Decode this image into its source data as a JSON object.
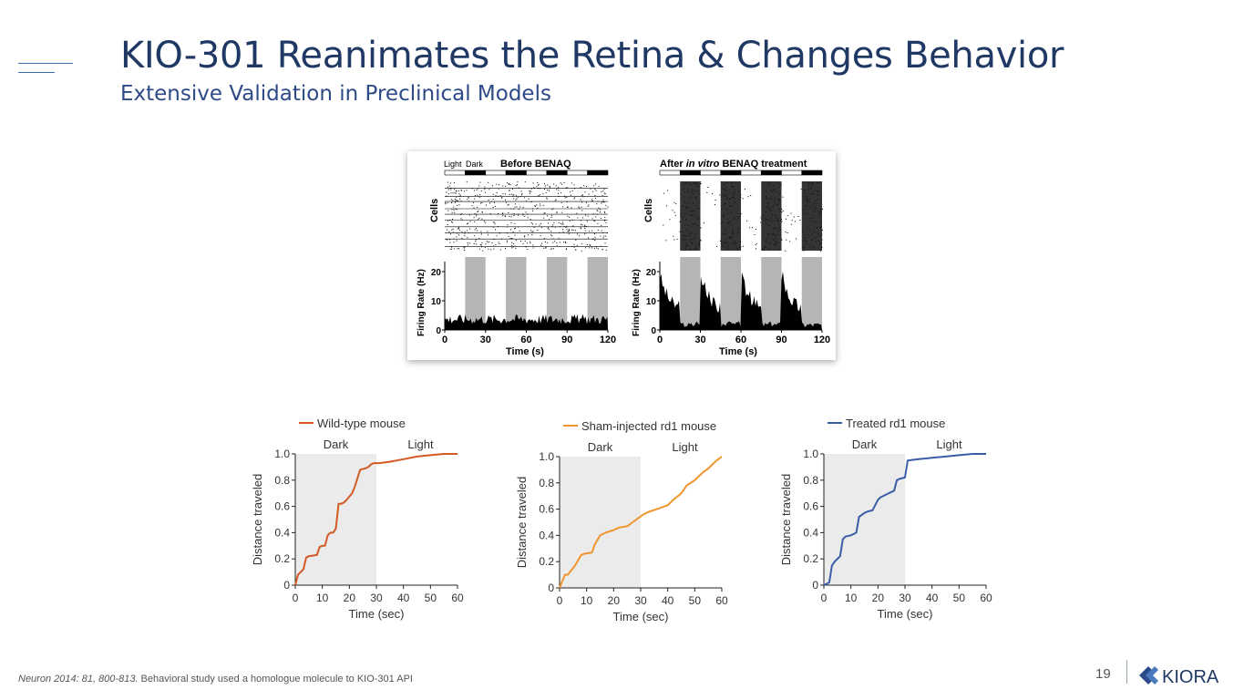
{
  "slide": {
    "title": "KIO-301 Reanimates the Retina & Changes Behavior",
    "subtitle": "Extensive Validation in Preclinical Models",
    "footnote_citation": "Neuron 2014: 81, 800-813.",
    "footnote_text": " Behavioral study used a homologue molecule to KIO-301 API",
    "page_number": "19",
    "logo_text": "KIORA",
    "accent_color": "#1f3864"
  },
  "figure": {
    "light_label": "Light",
    "dark_label": "Dark",
    "left_title": "Before BENAQ",
    "right_title_prefix": "After ",
    "right_title_italic": "in vitro",
    "right_title_suffix": " BENAQ treatment",
    "cells_label": "Cells",
    "ylabel": "Firing Rate (Hz)",
    "xlabel": "Time (s)",
    "yticks": [
      "0",
      "10",
      "20"
    ],
    "xticks": [
      "0",
      "30",
      "60",
      "90",
      "120"
    ]
  },
  "chart_data": [
    {
      "type": "line",
      "legend": "Wild-type mouse",
      "color": "#d35a24",
      "xlabel": "Time (sec)",
      "ylabel": "Distance traveled",
      "dark_label": "Dark",
      "light_label": "Light",
      "shaded_x": [
        0,
        30
      ],
      "xlim": [
        0,
        60
      ],
      "ylim": [
        0,
        1.0
      ],
      "xticks": [
        0,
        10,
        20,
        30,
        40,
        50,
        60
      ],
      "yticks": [
        0,
        0.2,
        0.4,
        0.6,
        0.8,
        1.0
      ],
      "x": [
        0,
        1,
        3,
        4,
        5,
        8,
        9,
        10,
        11,
        12,
        13,
        14,
        15,
        16,
        17,
        18,
        19,
        21,
        22,
        24,
        26,
        27,
        28,
        29,
        30,
        31,
        35,
        40,
        45,
        50,
        55,
        60
      ],
      "y": [
        0,
        0.08,
        0.12,
        0.21,
        0.22,
        0.23,
        0.29,
        0.3,
        0.3,
        0.38,
        0.4,
        0.4,
        0.43,
        0.62,
        0.62,
        0.63,
        0.65,
        0.7,
        0.75,
        0.88,
        0.89,
        0.9,
        0.92,
        0.93,
        0.93,
        0.93,
        0.94,
        0.96,
        0.98,
        0.99,
        1.0,
        1.0
      ]
    },
    {
      "type": "line",
      "legend": "Sham-injected rd1 mouse",
      "color": "#f0952e",
      "xlabel": "Time (sec)",
      "ylabel": "Distance traveled",
      "dark_label": "Dark",
      "light_label": "Light",
      "shaded_x": [
        0,
        30
      ],
      "xlim": [
        0,
        60
      ],
      "ylim": [
        0,
        1.0
      ],
      "xticks": [
        0,
        10,
        20,
        30,
        40,
        50,
        60
      ],
      "yticks": [
        0,
        0.2,
        0.4,
        0.6,
        0.8,
        1.0
      ],
      "x": [
        0,
        1,
        2,
        3,
        5,
        6,
        8,
        9,
        12,
        13,
        15,
        17,
        20,
        22,
        25,
        27,
        29,
        31,
        33,
        36,
        40,
        42,
        45,
        47,
        50,
        53,
        55,
        58,
        60
      ],
      "y": [
        0,
        0.05,
        0.1,
        0.1,
        0.15,
        0.18,
        0.25,
        0.26,
        0.27,
        0.33,
        0.4,
        0.42,
        0.44,
        0.46,
        0.47,
        0.5,
        0.53,
        0.56,
        0.58,
        0.6,
        0.63,
        0.67,
        0.72,
        0.78,
        0.82,
        0.88,
        0.91,
        0.97,
        1.0
      ]
    },
    {
      "type": "line",
      "legend": "Treated rd1 mouse",
      "color": "#3a5da8",
      "xlabel": "Time (sec)",
      "ylabel": "Distance traveled",
      "dark_label": "Dark",
      "light_label": "Light",
      "shaded_x": [
        0,
        30
      ],
      "xlim": [
        0,
        60
      ],
      "ylim": [
        0,
        1.0
      ],
      "xticks": [
        0,
        10,
        20,
        30,
        40,
        50,
        60
      ],
      "yticks": [
        0,
        0.2,
        0.4,
        0.6,
        0.8,
        1.0
      ],
      "x": [
        0,
        2,
        3,
        4,
        6,
        7,
        8,
        10,
        12,
        13,
        15,
        16,
        18,
        20,
        21,
        22,
        23,
        26,
        27,
        28,
        30,
        31,
        35,
        40,
        45,
        50,
        55,
        58,
        60
      ],
      "y": [
        0,
        0.02,
        0.15,
        0.18,
        0.22,
        0.35,
        0.37,
        0.38,
        0.4,
        0.52,
        0.55,
        0.56,
        0.57,
        0.65,
        0.67,
        0.68,
        0.69,
        0.72,
        0.8,
        0.81,
        0.82,
        0.95,
        0.96,
        0.97,
        0.98,
        0.99,
        1.0,
        1.0,
        1.0
      ]
    }
  ]
}
